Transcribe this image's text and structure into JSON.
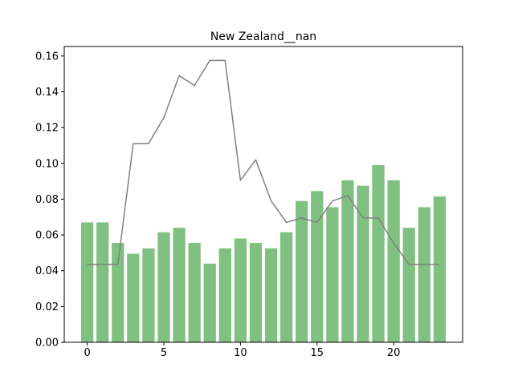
{
  "chart_data": {
    "type": "bar",
    "title": "New Zealand__nan",
    "xlabel": "",
    "ylabel": "",
    "x": [
      0,
      1,
      2,
      3,
      4,
      5,
      6,
      7,
      8,
      9,
      10,
      11,
      12,
      13,
      14,
      15,
      16,
      17,
      18,
      19,
      20,
      21,
      22,
      23
    ],
    "bar_values": [
      0.067,
      0.067,
      0.0555,
      0.0495,
      0.0525,
      0.0615,
      0.064,
      0.0555,
      0.044,
      0.0525,
      0.058,
      0.0555,
      0.0525,
      0.0615,
      0.079,
      0.0845,
      0.0755,
      0.0905,
      0.0875,
      0.099,
      0.0905,
      0.064,
      0.0755,
      0.0815
    ],
    "line_values": [
      0.0435,
      0.0435,
      0.0435,
      0.111,
      0.111,
      0.1255,
      0.149,
      0.1435,
      0.1575,
      0.1575,
      0.0905,
      0.102,
      0.079,
      0.067,
      0.0695,
      0.067,
      0.079,
      0.082,
      0.0695,
      0.0695,
      0.0555,
      0.0435,
      0.0435,
      0.0435
    ],
    "xlim": [
      -1.5,
      24.5
    ],
    "ylim": [
      0,
      0.1653
    ],
    "xticks": [
      0,
      5,
      10,
      15,
      20
    ],
    "xtick_labels": [
      "0",
      "5",
      "10",
      "15",
      "20"
    ],
    "yticks": [
      0.0,
      0.02,
      0.04,
      0.06,
      0.08,
      0.1,
      0.12,
      0.14,
      0.16
    ],
    "ytick_labels": [
      "0.00",
      "0.02",
      "0.04",
      "0.06",
      "0.08",
      "0.10",
      "0.12",
      "0.14",
      "0.16"
    ],
    "bar_color": "#80c080",
    "line_color": "#808080",
    "grid": false,
    "legend": "none"
  }
}
